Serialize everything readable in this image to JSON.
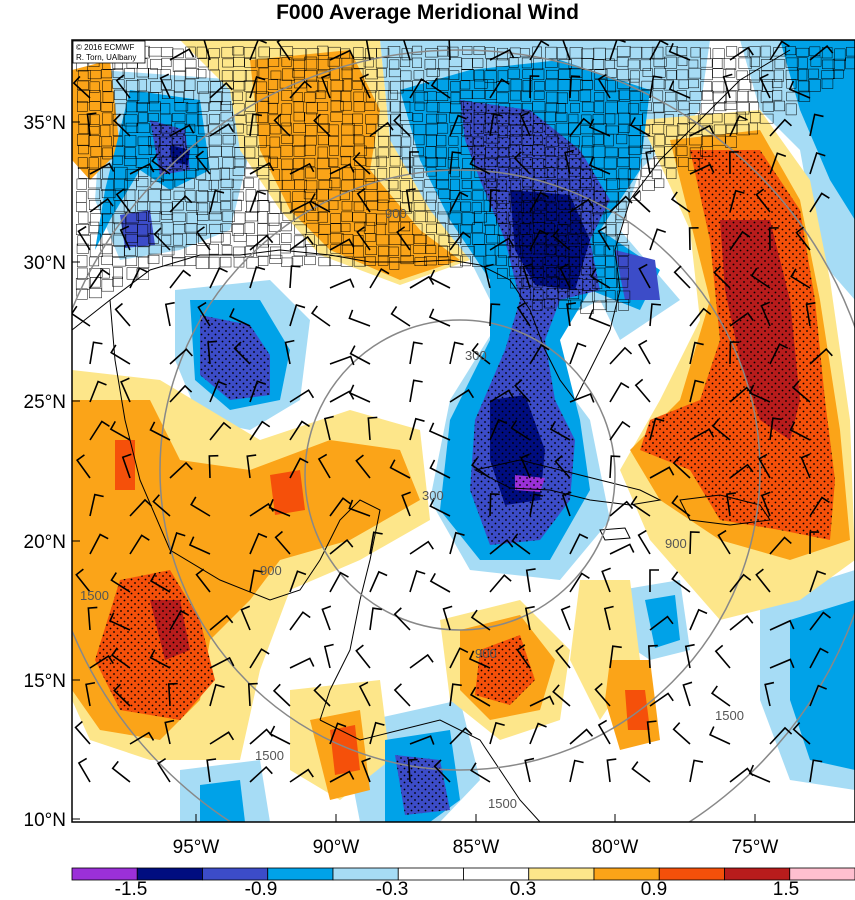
{
  "title": "F000 Average Meridional Wind",
  "credit": {
    "line1": "© 2016 ECMWF",
    "line2": "R. Torn, UAlbany"
  },
  "axes": {
    "lat_labels": [
      "35°N",
      "30°N",
      "25°N",
      "20°N",
      "15°N",
      "10°N"
    ],
    "lon_labels": [
      "95°W",
      "90°W",
      "85°W",
      "80°W",
      "75°W"
    ]
  },
  "range_rings": {
    "labels": [
      "300",
      "300",
      "900",
      "900",
      "900",
      "900",
      "1500",
      "1500",
      "1500",
      "1500"
    ]
  },
  "colorbar": {
    "tick_labels": [
      "-1.5",
      "-0.9",
      "-0.3",
      "0.3",
      "0.9",
      "1.5"
    ],
    "colors": [
      "#9b30d8",
      "#000d80",
      "#3c4cc8",
      "#00a2e8",
      "#a6dcf5",
      "#ffffff",
      "#ffffff",
      "#fde68a",
      "#fba418",
      "#f5500a",
      "#b81c1c",
      "#ffbfcf"
    ]
  },
  "colors": {
    "strong_neg": "#000d80",
    "mod_neg": "#3c4cc8",
    "weak_neg": "#00a2e8",
    "light_neg": "#a6dcf5",
    "light_pos": "#fde68a",
    "weak_pos": "#fba418",
    "mod_pos": "#f5500a",
    "strong_pos": "#b81c1c",
    "peak_neg": "#9b30d8"
  }
}
